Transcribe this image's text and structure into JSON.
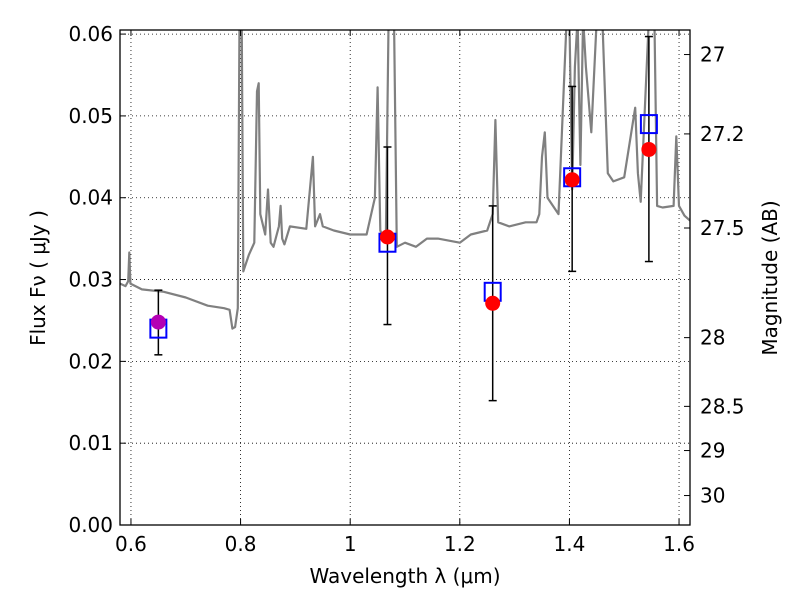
{
  "chart_data": {
    "type": "line+scatter",
    "title": "",
    "xlabel": "Wavelength  λ (μm)",
    "ylabel": "Flux  Fν  ( μJy )",
    "y2label": "Magnitude (AB)",
    "xlim": [
      0.58,
      1.62
    ],
    "ylim": [
      0.0,
      0.0605
    ],
    "grid": true,
    "x_ticks": [
      0.6,
      0.8,
      1.0,
      1.2,
      1.4,
      1.6
    ],
    "x_tick_labels": [
      "0.6",
      "0.8",
      "1",
      "1.2",
      "1.4",
      "1.6"
    ],
    "y_ticks": [
      0.0,
      0.01,
      0.02,
      0.03,
      0.04,
      0.05,
      0.06
    ],
    "y_tick_labels": [
      "0.00",
      "0.01",
      "0.02",
      "0.03",
      "0.04",
      "0.05",
      "0.06"
    ],
    "y2_ticks": [
      {
        "label": "27",
        "flux": 0.0575
      },
      {
        "label": "27.2",
        "flux": 0.0478
      },
      {
        "label": "27.5",
        "flux": 0.0363
      },
      {
        "label": "28",
        "flux": 0.0229
      },
      {
        "label": "28.5",
        "flux": 0.0145
      },
      {
        "label": "29",
        "flux": 0.0091
      },
      {
        "label": "30",
        "flux": 0.0036
      }
    ],
    "colors": {
      "spectrum": "#808080",
      "observed": "#0000ff",
      "model": "#ff0000",
      "first_model": "#b400b4",
      "errorbar": "#000000",
      "grid": "#888888"
    },
    "spectrum": [
      [
        0.58,
        0.0295
      ],
      [
        0.59,
        0.0292
      ],
      [
        0.595,
        0.0298
      ],
      [
        0.597,
        0.0333
      ],
      [
        0.599,
        0.0295
      ],
      [
        0.62,
        0.0288
      ],
      [
        0.66,
        0.0285
      ],
      [
        0.7,
        0.0278
      ],
      [
        0.74,
        0.0268
      ],
      [
        0.77,
        0.0265
      ],
      [
        0.78,
        0.0263
      ],
      [
        0.785,
        0.024
      ],
      [
        0.79,
        0.0242
      ],
      [
        0.795,
        0.0265
      ],
      [
        0.798,
        0.062
      ],
      [
        0.802,
        0.062
      ],
      [
        0.805,
        0.031
      ],
      [
        0.815,
        0.033
      ],
      [
        0.825,
        0.0345
      ],
      [
        0.83,
        0.053
      ],
      [
        0.833,
        0.054
      ],
      [
        0.836,
        0.038
      ],
      [
        0.845,
        0.0355
      ],
      [
        0.85,
        0.041
      ],
      [
        0.855,
        0.0345
      ],
      [
        0.86,
        0.034
      ],
      [
        0.87,
        0.0365
      ],
      [
        0.873,
        0.039
      ],
      [
        0.876,
        0.035
      ],
      [
        0.88,
        0.0343
      ],
      [
        0.89,
        0.0365
      ],
      [
        0.92,
        0.0362
      ],
      [
        0.932,
        0.045
      ],
      [
        0.936,
        0.0365
      ],
      [
        0.945,
        0.038
      ],
      [
        0.95,
        0.0365
      ],
      [
        0.97,
        0.036
      ],
      [
        1.0,
        0.0355
      ],
      [
        1.03,
        0.0355
      ],
      [
        1.045,
        0.04
      ],
      [
        1.05,
        0.0535
      ],
      [
        1.055,
        0.036
      ],
      [
        1.065,
        0.0345
      ],
      [
        1.07,
        0.062
      ],
      [
        1.08,
        0.062
      ],
      [
        1.085,
        0.034
      ],
      [
        1.1,
        0.0345
      ],
      [
        1.12,
        0.034
      ],
      [
        1.14,
        0.035
      ],
      [
        1.16,
        0.035
      ],
      [
        1.2,
        0.0345
      ],
      [
        1.22,
        0.0355
      ],
      [
        1.25,
        0.036
      ],
      [
        1.26,
        0.038
      ],
      [
        1.265,
        0.0495
      ],
      [
        1.27,
        0.037
      ],
      [
        1.29,
        0.0365
      ],
      [
        1.32,
        0.037
      ],
      [
        1.34,
        0.037
      ],
      [
        1.345,
        0.038
      ],
      [
        1.35,
        0.045
      ],
      [
        1.355,
        0.048
      ],
      [
        1.36,
        0.04
      ],
      [
        1.38,
        0.038
      ],
      [
        1.395,
        0.062
      ],
      [
        1.4,
        0.062
      ],
      [
        1.405,
        0.041
      ],
      [
        1.41,
        0.056
      ],
      [
        1.415,
        0.062
      ],
      [
        1.42,
        0.044
      ],
      [
        1.425,
        0.062
      ],
      [
        1.43,
        0.056
      ],
      [
        1.44,
        0.048
      ],
      [
        1.45,
        0.062
      ],
      [
        1.46,
        0.062
      ],
      [
        1.47,
        0.043
      ],
      [
        1.48,
        0.042
      ],
      [
        1.5,
        0.0425
      ],
      [
        1.52,
        0.051
      ],
      [
        1.525,
        0.043
      ],
      [
        1.53,
        0.0395
      ],
      [
        1.545,
        0.062
      ],
      [
        1.555,
        0.062
      ],
      [
        1.56,
        0.039
      ],
      [
        1.57,
        0.0388
      ],
      [
        1.59,
        0.039
      ],
      [
        1.595,
        0.0475
      ],
      [
        1.6,
        0.039
      ],
      [
        1.61,
        0.0378
      ],
      [
        1.62,
        0.0372
      ]
    ],
    "observed": [
      {
        "x": 0.65,
        "y": 0.024,
        "err_low": 0.0208,
        "err_high": 0.0287
      },
      {
        "x": 1.068,
        "y": 0.0345,
        "err_low": 0.0245,
        "err_high": 0.0462
      },
      {
        "x": 1.26,
        "y": 0.0285,
        "err_low": 0.0152,
        "err_high": 0.039
      },
      {
        "x": 1.405,
        "y": 0.0425,
        "err_low": 0.031,
        "err_high": 0.0536
      },
      {
        "x": 1.545,
        "y": 0.049,
        "err_low": 0.0322,
        "err_high": 0.0597
      }
    ],
    "model": [
      {
        "x": 0.65,
        "y": 0.0248
      },
      {
        "x": 1.068,
        "y": 0.0352
      },
      {
        "x": 1.26,
        "y": 0.0271
      },
      {
        "x": 1.405,
        "y": 0.0422
      },
      {
        "x": 1.545,
        "y": 0.0459
      }
    ]
  }
}
